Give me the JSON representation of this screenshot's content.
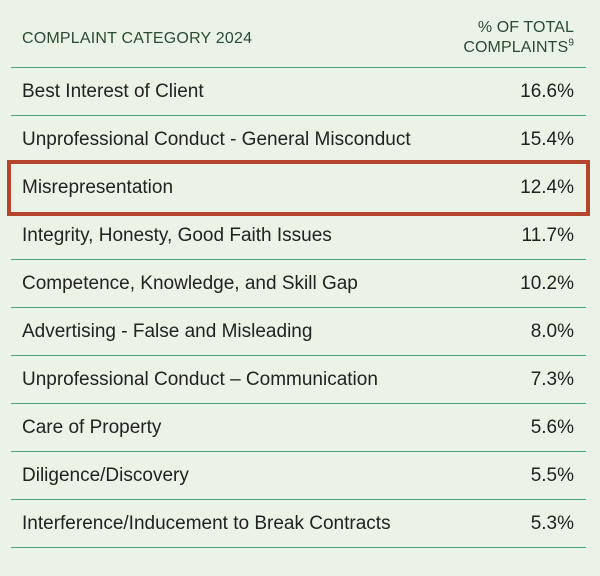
{
  "header": {
    "category_label": "COMPLAINT CATEGORY 2024",
    "percent_label_line1": "% OF TOTAL",
    "percent_label_line2": "COMPLAINTS",
    "footnote_marker": "9"
  },
  "colors": {
    "background": "#ebf3e6",
    "divider": "#4aa57e",
    "highlight_border": "#b5452d"
  },
  "chart_data": {
    "type": "table",
    "columns": [
      "COMPLAINT CATEGORY 2024",
      "% OF TOTAL COMPLAINTS"
    ],
    "rows": [
      {
        "category": "Best Interest of Client",
        "value_label": "16.6%",
        "value": 16.6,
        "highlighted": false
      },
      {
        "category": "Unprofessional Conduct - General Misconduct",
        "value_label": "15.4%",
        "value": 15.4,
        "highlighted": false
      },
      {
        "category": "Misrepresentation",
        "value_label": "12.4%",
        "value": 12.4,
        "highlighted": true
      },
      {
        "category": "Integrity, Honesty, Good Faith Issues",
        "value_label": "11.7%",
        "value": 11.7,
        "highlighted": false
      },
      {
        "category": "Competence, Knowledge, and Skill Gap",
        "value_label": "10.2%",
        "value": 10.2,
        "highlighted": false
      },
      {
        "category": "Advertising - False and Misleading",
        "value_label": "8.0%",
        "value": 8.0,
        "highlighted": false
      },
      {
        "category": "Unprofessional Conduct – Communication",
        "value_label": "7.3%",
        "value": 7.3,
        "highlighted": false
      },
      {
        "category": "Care of Property",
        "value_label": "5.6%",
        "value": 5.6,
        "highlighted": false
      },
      {
        "category": "Diligence/Discovery",
        "value_label": "5.5%",
        "value": 5.5,
        "highlighted": false
      },
      {
        "category": "Interference/Inducement to Break Contracts",
        "value_label": "5.3%",
        "value": 5.3,
        "highlighted": false
      }
    ]
  }
}
